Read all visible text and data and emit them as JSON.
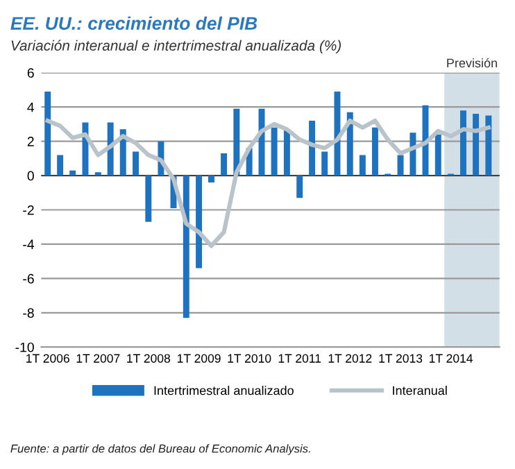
{
  "chart_data": {
    "type": "bar",
    "title": "EE. UU.: crecimiento del PIB",
    "subtitle": "Variación interanual e intertrimestral anualizada (%)",
    "x": [
      "2006-01",
      "2006-04",
      "2006-07",
      "2006-10",
      "2007-01",
      "2007-04",
      "2007-07",
      "2007-10",
      "2008-01",
      "2008-04",
      "2008-07",
      "2008-10",
      "2009-01",
      "2009-04",
      "2009-07",
      "2009-10",
      "2010-01",
      "2010-04",
      "2010-07",
      "2010-10",
      "2011-01",
      "2011-04",
      "2011-07",
      "2011-10",
      "2012-01",
      "2012-04",
      "2012-07",
      "2012-10",
      "2013-01",
      "2013-04",
      "2013-07",
      "2013-10",
      "2014-01",
      "2014-04",
      "2014-07",
      "2014-10"
    ],
    "series": [
      {
        "name": "Intertrimestral anualizado",
        "color": "#1f72bd",
        "values": [
          4.9,
          1.2,
          0.3,
          3.1,
          0.2,
          3.1,
          2.7,
          1.4,
          -2.7,
          2.0,
          -1.9,
          -8.3,
          -5.4,
          -0.4,
          1.3,
          3.9,
          1.6,
          3.9,
          2.8,
          2.7,
          -1.3,
          3.2,
          1.4,
          4.9,
          3.7,
          1.2,
          2.8,
          0.1,
          1.2,
          2.5,
          4.1,
          2.4,
          0.1,
          3.8,
          3.6,
          3.5
        ]
      },
      {
        "name": "Interanual",
        "type": "line",
        "color": "#b9c3ca",
        "values": [
          3.2,
          2.9,
          2.2,
          2.4,
          1.2,
          1.7,
          2.3,
          1.9,
          1.2,
          0.9,
          -0.2,
          -2.8,
          -3.3,
          -4.1,
          -3.3,
          0.2,
          1.6,
          2.6,
          3.0,
          2.7,
          2.1,
          1.8,
          1.6,
          2.1,
          3.2,
          2.8,
          3.2,
          2.1,
          1.3,
          1.6,
          1.9,
          2.6,
          2.3,
          2.7,
          2.6,
          2.8
        ]
      }
    ],
    "xlim": [
      "2005-11-15",
      "2014-12-20"
    ],
    "xticks": [
      {
        "value": "2006-01",
        "label": "1T 2006"
      },
      {
        "value": "2007-01",
        "label": "1T 2007"
      },
      {
        "value": "2008-01",
        "label": "1T 2008"
      },
      {
        "value": "2009-01",
        "label": "1T 2009"
      },
      {
        "value": "2010-01",
        "label": "1T 2010"
      },
      {
        "value": "2011-01",
        "label": "1T 2011"
      },
      {
        "value": "2012-01",
        "label": "1T 2012"
      },
      {
        "value": "2013-01",
        "label": "1T 2013"
      },
      {
        "value": "2014-01",
        "label": "1T 2014"
      }
    ],
    "ylim": [
      -10,
      6
    ],
    "yticks": [
      -10,
      -8,
      -6,
      -4,
      -2,
      0,
      2,
      4,
      6
    ],
    "grid": "y",
    "legend": "bottom",
    "bands": [
      {
        "axis": "x",
        "from": "2013-11-15",
        "to": "2014-12-20",
        "label": "Previsión",
        "color": "#d3dfe7"
      }
    ],
    "annotations": [
      "Fuente: a partir de datos del Bureau of Economic Analysis."
    ]
  }
}
